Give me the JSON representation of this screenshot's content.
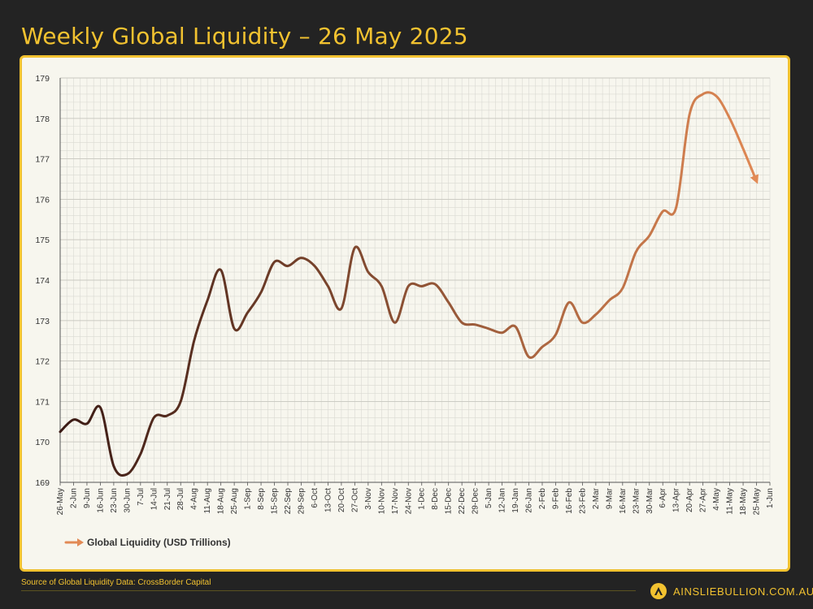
{
  "header": {
    "title": "Weekly Global Liquidity – 26 May 2025"
  },
  "footer": {
    "source": "Source of Global Liquidity Data: CrossBorder Capital",
    "brand": "AINSLIEBULLION.COM.AU"
  },
  "colors": {
    "background": "#232323",
    "accent": "#f2c230",
    "panel": "#f7f6ee",
    "grid": "#d9d9d2",
    "line_start": "#3a1a14",
    "line_end": "#e28a55"
  },
  "chart_data": {
    "type": "line",
    "title": "Weekly Global Liquidity – 26 May 2025",
    "xlabel": "",
    "ylabel": "",
    "ylim": [
      169,
      179
    ],
    "yticks": [
      169,
      170,
      171,
      172,
      173,
      174,
      175,
      176,
      177,
      178,
      179
    ],
    "grid": true,
    "legend": "bottom-left",
    "categories": [
      "26-May",
      "2-Jun",
      "9-Jun",
      "16-Jun",
      "23-Jun",
      "30-Jun",
      "7-Jul",
      "14-Jul",
      "21-Jul",
      "28-Jul",
      "4-Aug",
      "11-Aug",
      "18-Aug",
      "25-Aug",
      "1-Sep",
      "8-Sep",
      "15-Sep",
      "22-Sep",
      "29-Sep",
      "6-Oct",
      "13-Oct",
      "20-Oct",
      "27-Oct",
      "3-Nov",
      "10-Nov",
      "17-Nov",
      "24-Nov",
      "1-Dec",
      "8-Dec",
      "15-Dec",
      "22-Dec",
      "29-Dec",
      "5-Jan",
      "12-Jan",
      "19-Jan",
      "26-Jan",
      "2-Feb",
      "9-Feb",
      "16-Feb",
      "23-Feb",
      "2-Mar",
      "9-Mar",
      "16-Mar",
      "23-Mar",
      "30-Mar",
      "6-Apr",
      "13-Apr",
      "20-Apr",
      "27-Apr",
      "4-May",
      "11-May",
      "18-May",
      "25-May",
      "1-Jun"
    ],
    "series": [
      {
        "name": "Global Liquidity (USD Trillions)",
        "values": [
          170.25,
          170.55,
          170.45,
          170.85,
          169.4,
          169.2,
          169.7,
          170.6,
          170.65,
          171.0,
          172.5,
          173.5,
          174.25,
          172.8,
          173.2,
          173.7,
          174.45,
          174.35,
          174.55,
          174.35,
          173.85,
          173.3,
          174.8,
          174.2,
          173.85,
          172.95,
          173.85,
          173.85,
          173.9,
          173.45,
          172.95,
          172.9,
          172.8,
          172.7,
          172.85,
          172.1,
          172.35,
          172.65,
          173.45,
          172.95,
          173.15,
          173.5,
          173.8,
          174.7,
          175.1,
          175.7,
          175.8,
          178.1,
          178.6,
          178.55,
          178.0,
          177.25,
          176.45,
          null
        ]
      }
    ]
  }
}
